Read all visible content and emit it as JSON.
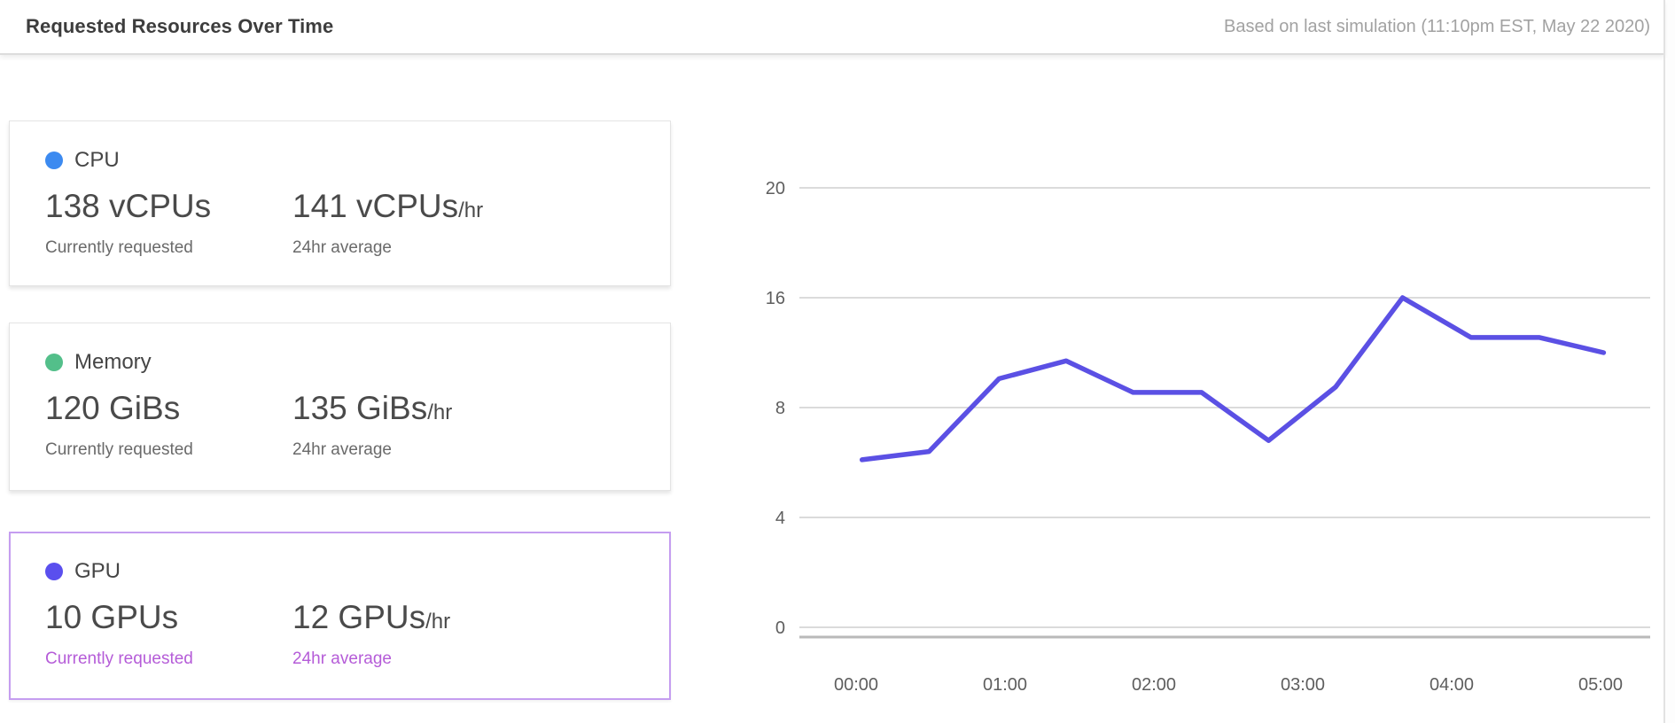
{
  "header": {
    "title": "Requested Resources Over Time",
    "subtitle": "Based on last simulation (11:10pm EST, May 22 2020)"
  },
  "cards": [
    {
      "title": "CPU",
      "dot_color": "#3c8af0",
      "current_value": "138 vCPUs",
      "current_label": "Currently requested",
      "average_value": "141 vCPUs",
      "per_hour_suffix": "/hr",
      "average_label": "24hr average",
      "selected": false
    },
    {
      "title": "Memory",
      "dot_color": "#53bf8a",
      "current_value": "120 GiBs",
      "current_label": "Currently requested",
      "average_value": "135 GiBs",
      "per_hour_suffix": "/hr",
      "average_label": "24hr average",
      "selected": false
    },
    {
      "title": "GPU",
      "dot_color": "#5a4fee",
      "current_value": "10 GPUs",
      "current_label": "Currently requested",
      "average_value": "12 GPUs",
      "per_hour_suffix": "/hr",
      "average_label": "24hr average",
      "selected": true
    }
  ],
  "colors": {
    "selected_card_border": "#c59df0",
    "selected_sublabel": "#b55cd8",
    "gridline": "#cfcfcf",
    "axis_line": "#b9b9b9",
    "tick_label": "#5e5e5e"
  },
  "chart_data": {
    "type": "line",
    "title": "Requested Resources Over Time",
    "xlabel": "",
    "ylabel": "",
    "x_tick_labels": [
      "00:00",
      "01:00",
      "02:00",
      "03:00",
      "04:00",
      "05:00"
    ],
    "y_tick_labels": [
      "20",
      "16",
      "8",
      "4",
      "0"
    ],
    "y_tick_values": [
      20,
      16,
      8,
      4,
      0
    ],
    "grid": "horizontal",
    "legend": "none",
    "series": [
      {
        "name": "GPU requested (GPUs)",
        "color": "#5b50e4",
        "x_hours": [
          0.04,
          0.49,
          0.96,
          1.41,
          1.86,
          2.32,
          2.77,
          3.22,
          3.67,
          4.13,
          4.59,
          5.02
        ],
        "values": [
          6.1,
          6.4,
          10.1,
          11.4,
          9.1,
          9.1,
          6.8,
          9.5,
          16.0,
          13.1,
          13.1,
          12.0
        ]
      }
    ]
  }
}
